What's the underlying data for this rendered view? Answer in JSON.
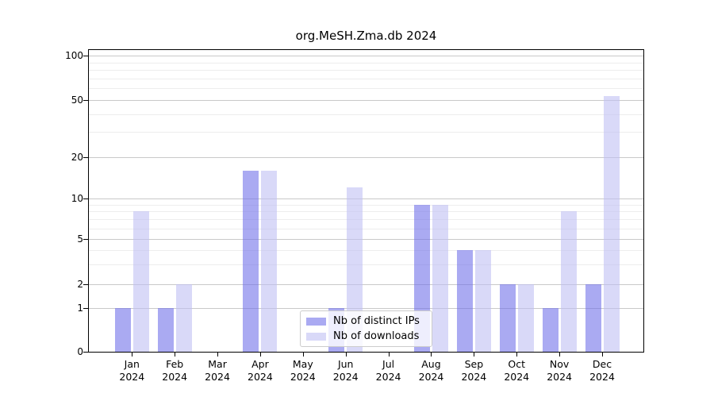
{
  "chart_data": {
    "type": "bar",
    "title": "org.MeSH.Zma.db 2024",
    "categories": [
      "Jan 2024",
      "Feb 2024",
      "Mar 2024",
      "Apr 2024",
      "May 2024",
      "Jun 2024",
      "Jul 2024",
      "Aug 2024",
      "Sep 2024",
      "Oct 2024",
      "Nov 2024",
      "Dec 2024"
    ],
    "series": [
      {
        "name": "Nb of distinct IPs",
        "color": "rgba(113,113,234,0.6)",
        "values": [
          1,
          1,
          0,
          16,
          0,
          1,
          0,
          9,
          4,
          2,
          1,
          2
        ]
      },
      {
        "name": "Nb of downloads",
        "color": "rgba(191,191,243,0.6)",
        "values": [
          8,
          2,
          0,
          16,
          0,
          12,
          0,
          9,
          4,
          2,
          8,
          53
        ]
      }
    ],
    "xlabel": "",
    "ylabel": "",
    "y_scale": "log-like (0, then logarithmic 1-100)",
    "y_ticks": [
      0,
      1,
      2,
      5,
      10,
      20,
      50,
      100
    ],
    "y_minor_ticks": [
      3,
      4,
      6,
      7,
      8,
      9,
      30,
      40,
      60,
      70,
      80,
      90
    ],
    "ylim": [
      0,
      100
    ],
    "grid": true,
    "legend_position": "lower center",
    "colors": {
      "bar_distinct_ips_rendered": "#aaaaf2",
      "bar_downloads_rendered": "#d9d9f8",
      "gridline_major": "#c9c9c9",
      "gridline_minor": "#ededed",
      "axis": "#000000",
      "background": "#ffffff"
    }
  }
}
